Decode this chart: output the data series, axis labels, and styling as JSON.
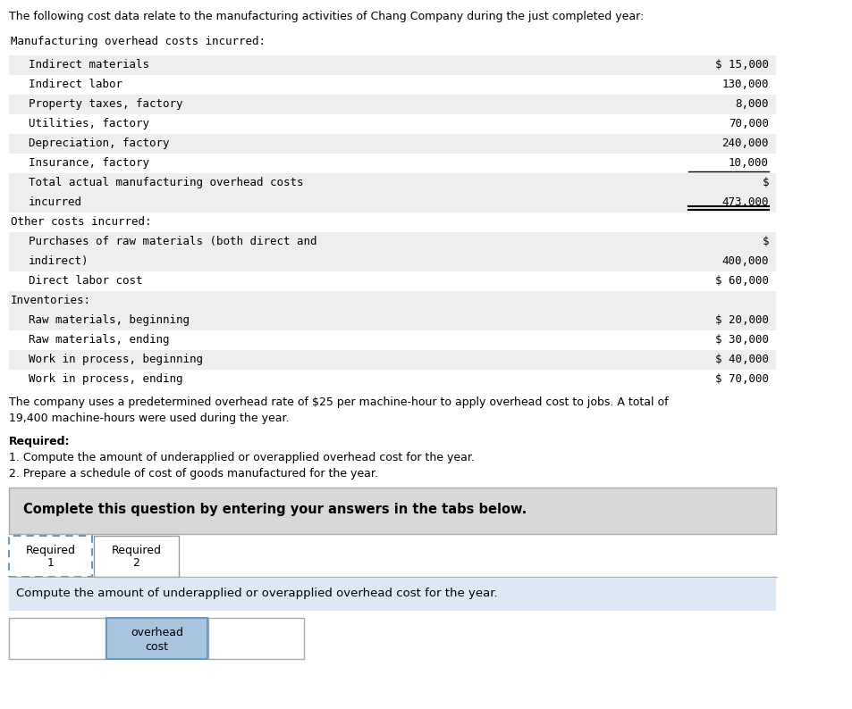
{
  "intro_text": "The following cost data relate to the manufacturing activities of Chang Company during the just completed year:",
  "section1_header": "Manufacturing overhead costs incurred:",
  "rows_overhead": [
    {
      "label": "Indirect materials",
      "val": "$ 15,000"
    },
    {
      "label": "Indirect labor",
      "val": "130,000"
    },
    {
      "label": "Property taxes, factory",
      "val": "8,000"
    },
    {
      "label": "Utilities, factory",
      "val": "70,000"
    },
    {
      "label": "Depreciation, factory",
      "val": "240,000"
    },
    {
      "label": "Insurance, factory",
      "val": "10,000"
    }
  ],
  "total_label_line1": "Total actual manufacturing overhead costs",
  "total_label_line2": "incurred",
  "total_dollar": "$",
  "total_val": "473,000",
  "section2_header": "Other costs incurred:",
  "purchases_line1": "Purchases of raw materials (both direct and",
  "purchases_line2": "indirect)",
  "purchases_dollar": "$",
  "purchases_val": "400,000",
  "direct_labor_label": "Direct labor cost",
  "direct_labor_val": "$ 60,000",
  "section3_header": "Inventories:",
  "rows_inv": [
    {
      "label": "Raw materials, beginning",
      "val": "$ 20,000"
    },
    {
      "label": "Raw materials, ending",
      "val": "$ 30,000"
    },
    {
      "label": "Work in process, beginning",
      "val": "$ 40,000"
    },
    {
      "label": "Work in process, ending",
      "val": "$ 70,000"
    }
  ],
  "body_text1": "The company uses a predetermined overhead rate of $25 per machine-hour to apply overhead cost to jobs. A total of",
  "body_text2": "19,400 machine-hours were used during the year.",
  "required_label": "Required:",
  "required_1": "1. Compute the amount of underapplied or overapplied overhead cost for the year.",
  "required_2": "2. Prepare a schedule of cost of goods manufactured for the year.",
  "complete_box_text": "Complete this question by entering your answers in the tabs below.",
  "tab1_line1": "Required",
  "tab1_line2": "1",
  "tab2_line1": "Required",
  "tab2_line2": "2",
  "instruction_text": "Compute the amount of underapplied or overapplied overhead cost for the year.",
  "overhead_cost_label_line1": "overhead",
  "overhead_cost_label_line2": "cost",
  "bg_white": "#ffffff",
  "bg_light_gray": "#eeeeee",
  "bg_medium_gray": "#d8d8d8",
  "bg_light_blue": "#dce9f5",
  "bg_tab_blue": "#a8c4de",
  "color_black": "#000000",
  "mono_font": "DejaVu Sans Mono",
  "sans_font": "DejaVu Sans"
}
